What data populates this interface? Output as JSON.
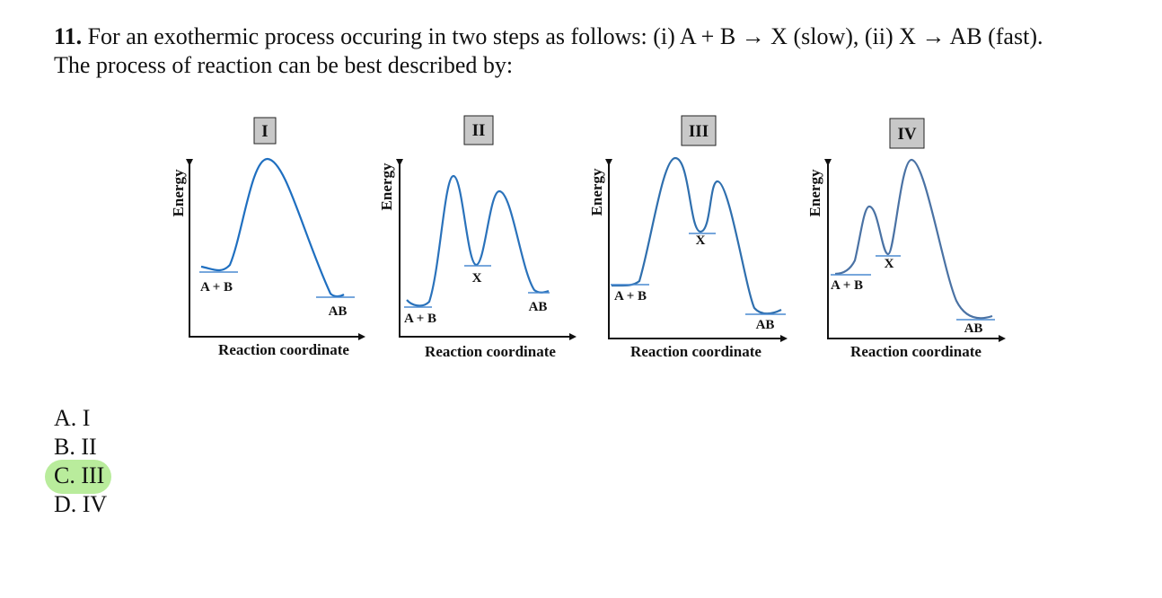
{
  "question": {
    "number": "11.",
    "lines": [
      "For an exothermic process occuring in two steps as follows: (i) A + B → X (slow), (ii) X → AB (fast).",
      "The process of reaction can be best described by:"
    ]
  },
  "diagrams": [
    {
      "label": "I",
      "y_axis": "Energy",
      "x_axis": "Reaction coordinate",
      "species": [
        "A + B",
        "AB"
      ]
    },
    {
      "label": "II",
      "y_axis": "Energy",
      "x_axis": "Reaction coordinate",
      "species": [
        "A + B",
        "X",
        "AB"
      ]
    },
    {
      "label": "III",
      "y_axis": "Energy",
      "x_axis": "Reaction coordinate",
      "species": [
        "A + B",
        "X",
        "AB"
      ]
    },
    {
      "label": "IV",
      "y_axis": "Energy",
      "x_axis": "Reaction coordinate",
      "species": [
        "A + B",
        "X",
        "AB"
      ]
    }
  ],
  "options": [
    "A. I",
    "B. II",
    "C. III",
    "D. IV"
  ],
  "highlighted": 2
}
